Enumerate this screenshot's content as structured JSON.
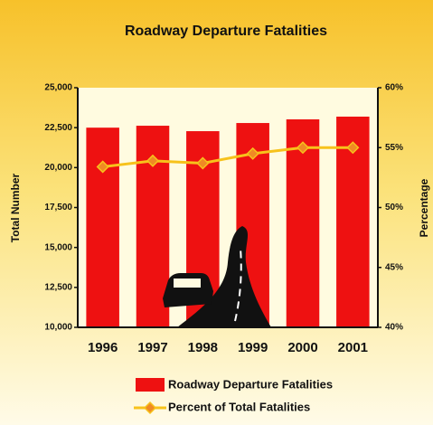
{
  "chart_data": {
    "type": "bar",
    "title": "Roadway Departure Fatalities",
    "y_label": "Total Number",
    "y2_label": "Percentage",
    "categories": [
      "1996",
      "1997",
      "1998",
      "1999",
      "2000",
      "2001"
    ],
    "series": [
      {
        "name": "Roadway Departure Fatalities",
        "type": "bar",
        "color": "#ee1111",
        "values": [
          22500,
          22620,
          22280,
          22790,
          23020,
          23190
        ]
      },
      {
        "name": "Percent of Total Fatalities",
        "type": "line",
        "axis": "y2",
        "color": "#f7c21b",
        "marker_color": "#f08a24",
        "values": [
          53.4,
          53.9,
          53.7,
          54.5,
          55.0,
          55.0
        ]
      }
    ],
    "ylim": [
      10000,
      25000
    ],
    "yticks": [
      {
        "value": 10000,
        "label": "10,000"
      },
      {
        "value": 12500,
        "label": "12,500"
      },
      {
        "value": 15000,
        "label": "15,000"
      },
      {
        "value": 17500,
        "label": "17,500"
      },
      {
        "value": 20000,
        "label": "20,000"
      },
      {
        "value": 22500,
        "label": "22,500"
      },
      {
        "value": 25000,
        "label": "25,000"
      }
    ],
    "y2lim": [
      40,
      60
    ],
    "y2ticks": [
      {
        "value": 40,
        "label": "40%"
      },
      {
        "value": 45,
        "label": "45%"
      },
      {
        "value": 50,
        "label": "50%"
      },
      {
        "value": 55,
        "label": "55%"
      },
      {
        "value": 60,
        "label": "60%"
      }
    ],
    "grid": false
  }
}
